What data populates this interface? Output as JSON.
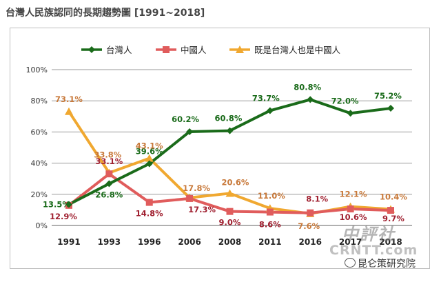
{
  "chart_data": {
    "type": "line",
    "title": "台灣人民族認同的長期趨勢圖  [1991~2018]",
    "categories": [
      "1991",
      "1993",
      "1996",
      "2006",
      "2008",
      "2011",
      "2016",
      "2017",
      "2018"
    ],
    "ylim": [
      0,
      100
    ],
    "yticks": [
      "0%",
      "20%",
      "40%",
      "60%",
      "80%",
      "100%"
    ],
    "yticks_values": [
      0,
      20,
      40,
      60,
      80,
      100
    ],
    "grid": true,
    "legend_position": "top",
    "series": [
      {
        "name": "台灣人",
        "color": "#1a6b1a",
        "marker": "diamond",
        "values": [
          13.5,
          26.8,
          39.6,
          60.2,
          60.8,
          73.7,
          80.8,
          72.0,
          75.2
        ],
        "labels": [
          "13.5%",
          "26.8%",
          "39.6%",
          "60.2%",
          "60.8%",
          "73.7%",
          "80.8%",
          "72.0%",
          "75.2%"
        ]
      },
      {
        "name": "中國人",
        "color": "#e05c5c",
        "label_color": "#a02030",
        "marker": "square",
        "values": [
          12.9,
          33.1,
          14.8,
          17.3,
          9.0,
          8.6,
          8.1,
          10.6,
          9.7
        ],
        "labels": [
          "12.9%",
          "33.1%",
          "14.8%",
          "17.3%",
          "9.0%",
          "8.6%",
          "8.1%",
          "10.6%",
          "9.7%"
        ]
      },
      {
        "name": "既是台灣人也是中國人",
        "color": "#f0a830",
        "label_color": "#c8793a",
        "marker": "triangle",
        "values": [
          73.1,
          33.8,
          43.1,
          17.8,
          20.6,
          11.0,
          7.6,
          12.1,
          10.4
        ],
        "labels": [
          "73.1%",
          "33.8%",
          "43.1%",
          "17.8%",
          "20.6%",
          "11.0%",
          "7.6%",
          "12.1%",
          "10.4%"
        ]
      }
    ]
  },
  "watermarks": {
    "chinese": "中評社",
    "site": "CRNTT.com",
    "source": "昆仑策研究院"
  }
}
